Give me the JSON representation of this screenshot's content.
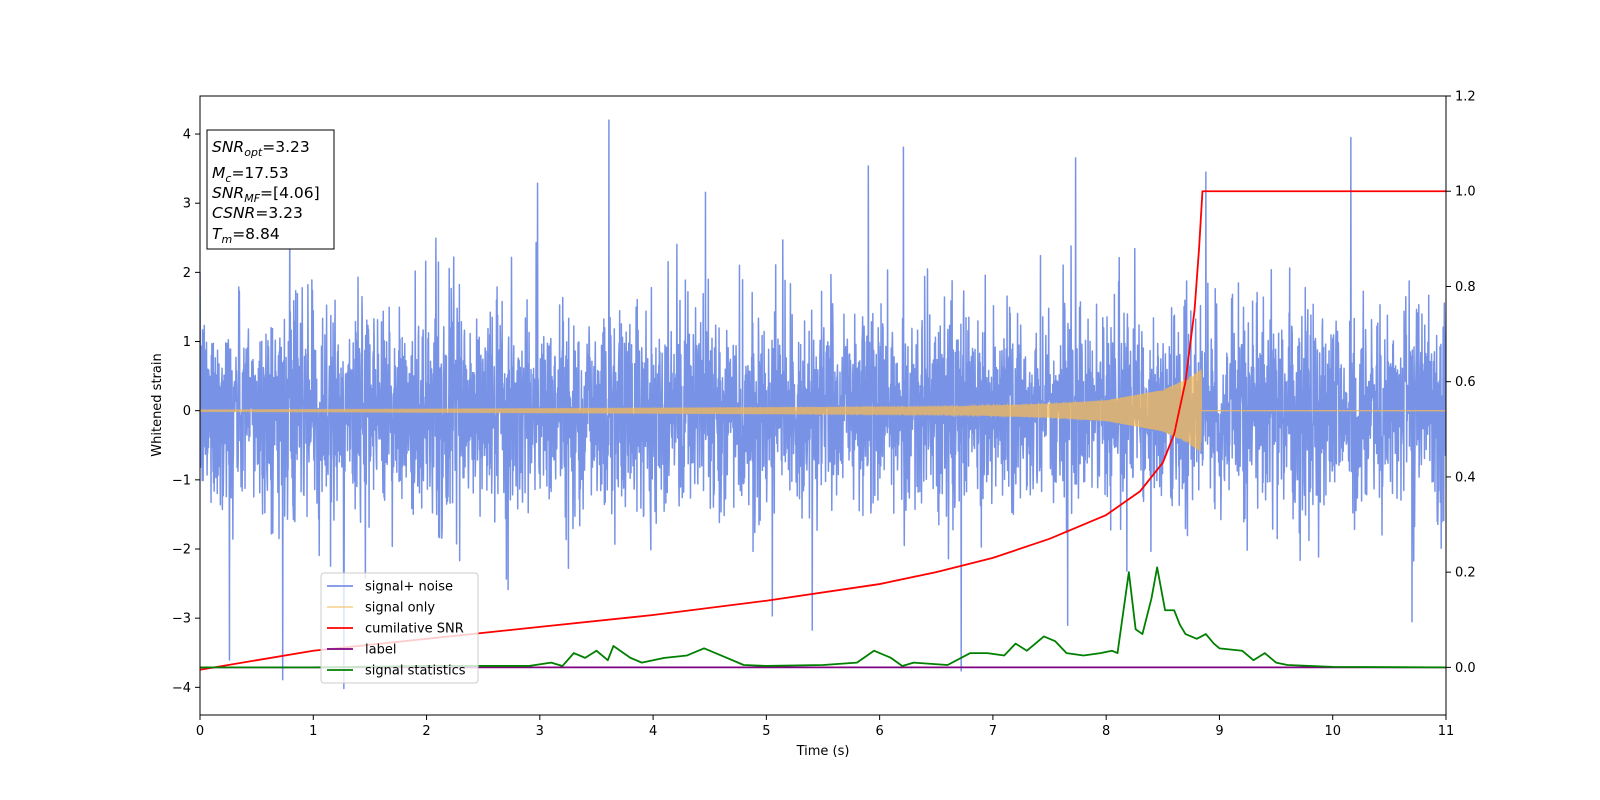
{
  "chart_data": {
    "type": "line",
    "xlabel": "Time (s)",
    "ylabel": "Whitened strain",
    "xlim": [
      0,
      11
    ],
    "ylim_left": [
      -4.4,
      4.55
    ],
    "ylim_right": [
      -0.1,
      1.2
    ],
    "x_ticks": [
      "0",
      "1",
      "2",
      "3",
      "4",
      "5",
      "6",
      "7",
      "8",
      "9",
      "10",
      "11"
    ],
    "y_left_ticks": [
      "−4",
      "−3",
      "−2",
      "−1",
      "0",
      "1",
      "2",
      "3",
      "4"
    ],
    "y_right_ticks": [
      "0.0",
      "0.2",
      "0.4",
      "0.6",
      "0.8",
      "1.0",
      "1.2"
    ],
    "grid": false,
    "legend": {
      "position": "lower-left",
      "entries": [
        "signal+ noise",
        "signal only",
        "cumilative SNR",
        "label",
        "signal statistics"
      ]
    },
    "annotation": {
      "position": "upper-left",
      "lines": [
        {
          "sym": "SNR",
          "sub": "opt",
          "value": "=3.23"
        },
        {
          "sym": "M",
          "sub": "c",
          "value": "=17.53"
        },
        {
          "sym": "SNR",
          "sub": "MF",
          "value": "=[4.06]"
        },
        {
          "sym": "CSNR",
          "sub": "",
          "value": "=3.23"
        },
        {
          "sym": "T",
          "sub": "m",
          "value": "=8.84"
        }
      ]
    },
    "series": [
      {
        "name": "signal+ noise",
        "axis": "left",
        "color": "#7893e6",
        "sample_rate": 400,
        "noise_std": 0.9,
        "typical_max": 2.3,
        "peak_points": [
          {
            "x": 0.26,
            "y": -3.6
          },
          {
            "x": 0.73,
            "y": -3.9
          },
          {
            "x": 1.27,
            "y": -4.0
          },
          {
            "x": 2.98,
            "y": 3.3
          },
          {
            "x": 3.61,
            "y": 4.17
          },
          {
            "x": 5.9,
            "y": 3.5
          },
          {
            "x": 6.21,
            "y": 3.8
          },
          {
            "x": 6.72,
            "y": -3.8
          },
          {
            "x": 7.73,
            "y": 3.6
          },
          {
            "x": 8.88,
            "y": 3.45
          },
          {
            "x": 10.16,
            "y": 3.95
          },
          {
            "x": 10.7,
            "y": -3.05
          }
        ]
      },
      {
        "name": "signal only",
        "axis": "left",
        "color": "#f5b955",
        "merger_time": 8.84,
        "envelope": [
          [
            0,
            0.01
          ],
          [
            6.5,
            0.05
          ],
          [
            7.5,
            0.1
          ],
          [
            8.0,
            0.15
          ],
          [
            8.5,
            0.3
          ],
          [
            8.7,
            0.45
          ],
          [
            8.84,
            0.6
          ]
        ]
      },
      {
        "name": "cumilative SNR",
        "axis": "right",
        "color": "#ff0000",
        "points": [
          [
            0,
            -0.005
          ],
          [
            1,
            0.035
          ],
          [
            2,
            0.06
          ],
          [
            3,
            0.085
          ],
          [
            4,
            0.11
          ],
          [
            5,
            0.14
          ],
          [
            6,
            0.175
          ],
          [
            6.5,
            0.2
          ],
          [
            7,
            0.23
          ],
          [
            7.5,
            0.27
          ],
          [
            8,
            0.32
          ],
          [
            8.3,
            0.37
          ],
          [
            8.5,
            0.43
          ],
          [
            8.6,
            0.49
          ],
          [
            8.7,
            0.6
          ],
          [
            8.78,
            0.75
          ],
          [
            8.82,
            0.88
          ],
          [
            8.85,
            1.0
          ],
          [
            11,
            1.0
          ]
        ]
      },
      {
        "name": "label",
        "axis": "right",
        "color": "#800080",
        "points": [
          [
            0,
            0.0
          ],
          [
            11,
            0.0
          ]
        ]
      },
      {
        "name": "signal statistics",
        "axis": "right",
        "color": "#008000",
        "points": [
          [
            0,
            0.0
          ],
          [
            1,
            0.0
          ],
          [
            2,
            0.003
          ],
          [
            2.9,
            0.003
          ],
          [
            3.1,
            0.01
          ],
          [
            3.2,
            0.003
          ],
          [
            3.3,
            0.03
          ],
          [
            3.4,
            0.02
          ],
          [
            3.5,
            0.035
          ],
          [
            3.6,
            0.015
          ],
          [
            3.65,
            0.045
          ],
          [
            3.8,
            0.02
          ],
          [
            3.9,
            0.01
          ],
          [
            4.1,
            0.02
          ],
          [
            4.3,
            0.025
          ],
          [
            4.45,
            0.04
          ],
          [
            4.6,
            0.025
          ],
          [
            4.8,
            0.005
          ],
          [
            5.0,
            0.003
          ],
          [
            5.5,
            0.005
          ],
          [
            5.8,
            0.01
          ],
          [
            5.95,
            0.035
          ],
          [
            6.1,
            0.02
          ],
          [
            6.2,
            0.003
          ],
          [
            6.3,
            0.01
          ],
          [
            6.6,
            0.005
          ],
          [
            6.8,
            0.03
          ],
          [
            6.95,
            0.03
          ],
          [
            7.1,
            0.025
          ],
          [
            7.2,
            0.05
          ],
          [
            7.3,
            0.035
          ],
          [
            7.45,
            0.065
          ],
          [
            7.55,
            0.055
          ],
          [
            7.65,
            0.03
          ],
          [
            7.8,
            0.025
          ],
          [
            7.95,
            0.03
          ],
          [
            8.05,
            0.035
          ],
          [
            8.1,
            0.03
          ],
          [
            8.2,
            0.2
          ],
          [
            8.26,
            0.08
          ],
          [
            8.32,
            0.07
          ],
          [
            8.4,
            0.145
          ],
          [
            8.45,
            0.21
          ],
          [
            8.52,
            0.12
          ],
          [
            8.6,
            0.12
          ],
          [
            8.65,
            0.09
          ],
          [
            8.7,
            0.07
          ],
          [
            8.8,
            0.06
          ],
          [
            8.88,
            0.07
          ],
          [
            8.95,
            0.05
          ],
          [
            9.0,
            0.04
          ],
          [
            9.2,
            0.035
          ],
          [
            9.3,
            0.015
          ],
          [
            9.4,
            0.03
          ],
          [
            9.5,
            0.01
          ],
          [
            9.6,
            0.005
          ],
          [
            10,
            0.001
          ],
          [
            11,
            0.0
          ]
        ]
      }
    ]
  }
}
